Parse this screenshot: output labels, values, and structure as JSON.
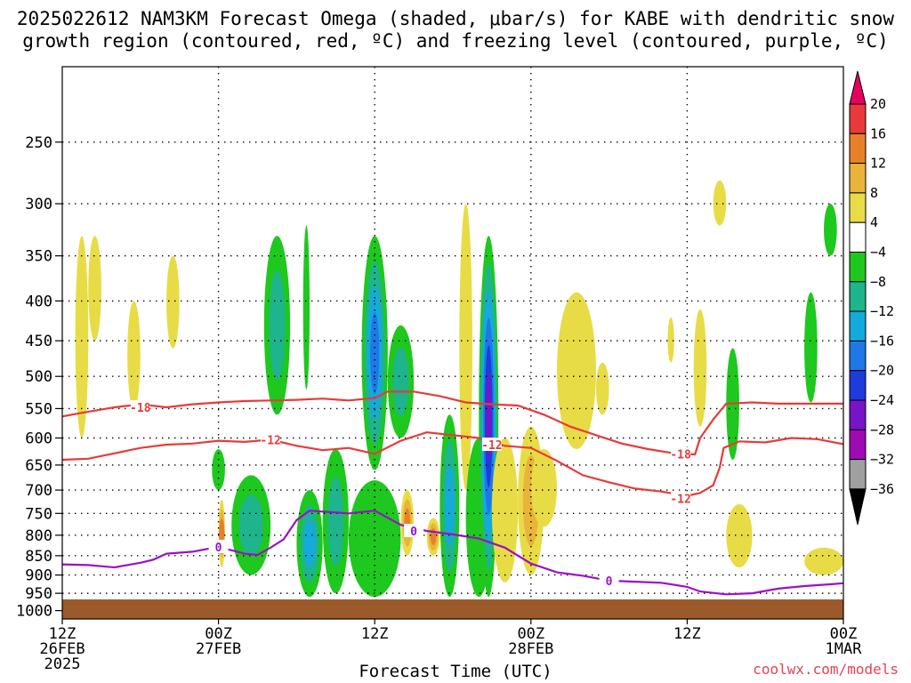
{
  "title": {
    "line1": "2025022612 NAM3KM Forecast Omega (shaded, μbar/s) for KABE with dendritic snow",
    "line2": "growth region (contoured, red, ºC) and freezing level (contoured, purple, ºC)"
  },
  "credit": "coolwx.com/models",
  "chart_data": {
    "type": "heatmap",
    "title": "2025022612 NAM3KM Forecast Omega (shaded, μbar/s) for KABE with dendritic snow growth region (contoured, red, ºC) and freezing level (contoured, purple, ºC)",
    "xlabel": "Forecast Time (UTC)",
    "ylabel": "",
    "x_ticks": [
      {
        "hour": 0,
        "line1": "12Z",
        "line2": "26FEB",
        "line3": "2025"
      },
      {
        "hour": 12,
        "line1": "00Z",
        "line2": "27FEB",
        "line3": ""
      },
      {
        "hour": 24,
        "line1": "12Z",
        "line2": "",
        "line3": ""
      },
      {
        "hour": 36,
        "line1": "00Z",
        "line2": "28FEB",
        "line3": ""
      },
      {
        "hour": 48,
        "line1": "12Z",
        "line2": "",
        "line3": ""
      },
      {
        "hour": 60,
        "line1": "00Z",
        "line2": "1MAR",
        "line3": ""
      }
    ],
    "xlim": [
      0,
      60
    ],
    "y_ticks": [
      250,
      300,
      350,
      400,
      450,
      500,
      550,
      600,
      650,
      700,
      750,
      800,
      850,
      900,
      950,
      1000
    ],
    "ylim": [
      1025,
      200
    ],
    "y_scale": "log-pressure",
    "colorbar": {
      "labels": [
        "20",
        "16",
        "12",
        "8",
        "4",
        "−4",
        "−8",
        "−12",
        "−16",
        "−20",
        "−24",
        "−28",
        "−32",
        "−36"
      ],
      "colors": [
        "#e8005f",
        "#e83a3a",
        "#e8802a",
        "#e8b43a",
        "#e8dc46",
        "#ffffff",
        "#1ec81e",
        "#1eb48c",
        "#14aadc",
        "#1e78e8",
        "#1e3cdc",
        "#7814c8",
        "#a00ab4",
        "#a0a0a0",
        "#000000"
      ]
    },
    "contours": {
      "dgz_minus12": {
        "label": "-12",
        "color": "#e83a3a",
        "points": [
          [
            0,
            640
          ],
          [
            2,
            638
          ],
          [
            4,
            628
          ],
          [
            6,
            618
          ],
          [
            8,
            612
          ],
          [
            10,
            610
          ],
          [
            12,
            605
          ],
          [
            14,
            607
          ],
          [
            16,
            603
          ],
          [
            18,
            614
          ],
          [
            20,
            622
          ],
          [
            22,
            618
          ],
          [
            24,
            629
          ],
          [
            26,
            605
          ],
          [
            28,
            590
          ],
          [
            30,
            595
          ],
          [
            32,
            600
          ],
          [
            34,
            614
          ],
          [
            36,
            618
          ],
          [
            38,
            642
          ],
          [
            40,
            670
          ],
          [
            42,
            684
          ],
          [
            44,
            697
          ],
          [
            46,
            703
          ],
          [
            48,
            712
          ],
          [
            49,
            706
          ],
          [
            50,
            690
          ],
          [
            50.5,
            655
          ],
          [
            50.8,
            618
          ],
          [
            52,
            606
          ],
          [
            54,
            608
          ],
          [
            56,
            600
          ],
          [
            58,
            602
          ],
          [
            60,
            611
          ]
        ],
        "labels": [
          [
            16,
            603
          ],
          [
            33,
            612
          ],
          [
            47.5,
            718
          ]
        ]
      },
      "dgz_minus18": {
        "label": "-18",
        "color": "#e83a3a",
        "points": [
          [
            0,
            563
          ],
          [
            2,
            555
          ],
          [
            4,
            548
          ],
          [
            6,
            543
          ],
          [
            8,
            548
          ],
          [
            10,
            543
          ],
          [
            12,
            540
          ],
          [
            14,
            538
          ],
          [
            16,
            537
          ],
          [
            18,
            536
          ],
          [
            20,
            534
          ],
          [
            22,
            537
          ],
          [
            24,
            533
          ],
          [
            25,
            523
          ],
          [
            27,
            523
          ],
          [
            29,
            530
          ],
          [
            31,
            540
          ],
          [
            33,
            543
          ],
          [
            35,
            545
          ],
          [
            37,
            560
          ],
          [
            39,
            580
          ],
          [
            41,
            595
          ],
          [
            43,
            610
          ],
          [
            45,
            620
          ],
          [
            47,
            628
          ],
          [
            48.6,
            630
          ],
          [
            49,
            600
          ],
          [
            50,
            568
          ],
          [
            51,
            542
          ],
          [
            53,
            540
          ],
          [
            55,
            542
          ],
          [
            57,
            542
          ],
          [
            60,
            542
          ]
        ],
        "labels": [
          [
            6,
            548
          ],
          [
            47.5,
            629
          ]
        ]
      },
      "freezing_0": {
        "label": "0",
        "color": "#9b10c8",
        "points": [
          [
            0,
            872
          ],
          [
            2,
            874
          ],
          [
            4,
            880
          ],
          [
            6,
            868
          ],
          [
            7,
            860
          ],
          [
            8,
            845
          ],
          [
            10,
            840
          ],
          [
            12,
            828
          ],
          [
            14,
            845
          ],
          [
            15,
            848
          ],
          [
            16,
            830
          ],
          [
            17,
            810
          ],
          [
            18,
            765
          ],
          [
            19,
            744
          ],
          [
            22,
            750
          ],
          [
            24,
            744
          ],
          [
            26,
            776
          ],
          [
            28,
            790
          ],
          [
            30,
            798
          ],
          [
            32,
            808
          ],
          [
            34,
            830
          ],
          [
            36,
            870
          ],
          [
            38,
            893
          ],
          [
            40,
            902
          ],
          [
            42,
            915
          ],
          [
            44,
            918
          ],
          [
            46,
            921
          ],
          [
            48,
            932
          ],
          [
            49,
            945
          ],
          [
            51,
            953
          ],
          [
            53,
            950
          ],
          [
            55,
            937
          ],
          [
            57,
            930
          ],
          [
            59,
            925
          ],
          [
            60,
            922
          ]
        ],
        "labels": [
          [
            12,
            828
          ],
          [
            27,
            790
          ],
          [
            42,
            915
          ]
        ]
      }
    },
    "shaded_regions_omega": [
      {
        "x": [
          1,
          2
        ],
        "p": [
          330,
          600
        ],
        "value": "4 to 8"
      },
      {
        "x": [
          2,
          3
        ],
        "p": [
          330,
          450
        ],
        "value": "4 to 8"
      },
      {
        "x": [
          5,
          6
        ],
        "p": [
          400,
          550
        ],
        "value": "4 to 8"
      },
      {
        "x": [
          8,
          9
        ],
        "p": [
          350,
          460
        ],
        "value": "4 to 8"
      },
      {
        "x": [
          11.5,
          12.5
        ],
        "p": [
          620,
          700
        ],
        "value": "-4 to -8"
      },
      {
        "x": [
          12,
          12.5
        ],
        "p": [
          720,
          880
        ],
        "value": "8 to 12"
      },
      {
        "x": [
          13,
          16
        ],
        "p": [
          670,
          900
        ],
        "value": "-4 to -12"
      },
      {
        "x": [
          15.5,
          17.5
        ],
        "p": [
          330,
          560
        ],
        "value": "-4 to -12"
      },
      {
        "x": [
          18.5,
          19
        ],
        "p": [
          320,
          520
        ],
        "value": "-4 to -8"
      },
      {
        "x": [
          18,
          20
        ],
        "p": [
          700,
          960
        ],
        "value": "-4 to -16"
      },
      {
        "x": [
          20,
          22
        ],
        "p": [
          620,
          950
        ],
        "value": "-4 to -12"
      },
      {
        "x": [
          23,
          25
        ],
        "p": [
          330,
          660
        ],
        "value": "-4 to -20"
      },
      {
        "x": [
          25,
          27
        ],
        "p": [
          430,
          600
        ],
        "value": "-4 to -12"
      },
      {
        "x": [
          22,
          26
        ],
        "p": [
          680,
          960
        ],
        "value": "-4 to -8"
      },
      {
        "x": [
          26,
          27
        ],
        "p": [
          700,
          850
        ],
        "value": "8 to 12"
      },
      {
        "x": [
          28,
          29
        ],
        "p": [
          760,
          850
        ],
        "value": "8 to 16"
      },
      {
        "x": [
          29,
          30.5
        ],
        "p": [
          560,
          960
        ],
        "value": "-4 to -16"
      },
      {
        "x": [
          30.5,
          31.5
        ],
        "p": [
          300,
          700
        ],
        "value": "4 to 8"
      },
      {
        "x": [
          31,
          33
        ],
        "p": [
          600,
          960
        ],
        "value": "-4 to -8"
      },
      {
        "x": [
          32,
          33.5
        ],
        "p": [
          330,
          960
        ],
        "value": "-4 to -28"
      },
      {
        "x": [
          33,
          35
        ],
        "p": [
          600,
          920
        ],
        "value": "4 to 8"
      },
      {
        "x": [
          35,
          37
        ],
        "p": [
          580,
          900
        ],
        "value": "4 to 12"
      },
      {
        "x": [
          36,
          38
        ],
        "p": [
          620,
          780
        ],
        "value": "4 to 8"
      },
      {
        "x": [
          38,
          41
        ],
        "p": [
          390,
          620
        ],
        "value": "4 to 8"
      },
      {
        "x": [
          41,
          42
        ],
        "p": [
          480,
          560
        ],
        "value": "4 to 8"
      },
      {
        "x": [
          46.5,
          47
        ],
        "p": [
          420,
          480
        ],
        "value": "4 to 8"
      },
      {
        "x": [
          48.5,
          49.5
        ],
        "p": [
          410,
          580
        ],
        "value": "4 to 8"
      },
      {
        "x": [
          50,
          51
        ],
        "p": [
          280,
          320
        ],
        "value": "4 to 8"
      },
      {
        "x": [
          51,
          52
        ],
        "p": [
          460,
          640
        ],
        "value": "-4 to -8"
      },
      {
        "x": [
          51,
          53
        ],
        "p": [
          730,
          880
        ],
        "value": "4 to 8"
      },
      {
        "x": [
          57,
          58
        ],
        "p": [
          390,
          540
        ],
        "value": "-4 to -8"
      },
      {
        "x": [
          58.5,
          59.5
        ],
        "p": [
          300,
          350
        ],
        "value": "-4 to -8"
      },
      {
        "x": [
          57,
          60
        ],
        "p": [
          830,
          900
        ],
        "value": "4 to 8"
      }
    ],
    "surface_fill_color": "#9b5a2a"
  },
  "colors": {
    "dgz_contour": "#e83a3a",
    "freezing_contour": "#9b10c8",
    "ground": "#9b5a2a",
    "grid": "#000000",
    "credit": "#e8424f"
  }
}
